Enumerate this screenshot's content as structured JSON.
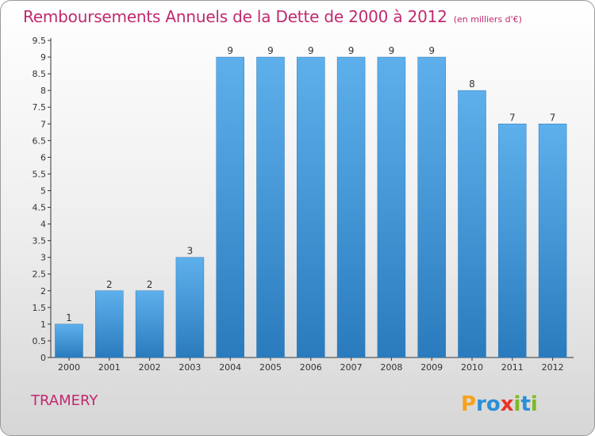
{
  "title": "Remboursements Annuels de la Dette de 2000 à 2012",
  "unit": "(en milliers d'€)",
  "town": "TRAMERY",
  "logo": {
    "text": "Proxiti",
    "letters": [
      "P",
      "r",
      "o",
      "x",
      "i",
      "t",
      "i"
    ],
    "colors": [
      "#f6a21c",
      "#2a8fd6",
      "#2a8fd6",
      "#e8342a",
      "#7cb926",
      "#2a8fd6",
      "#7cb926"
    ]
  },
  "colors": {
    "bar": "#3c95d6",
    "title": "#c0296f",
    "axis": "#333333"
  },
  "chart_data": {
    "type": "bar",
    "categories": [
      "2000",
      "2001",
      "2002",
      "2003",
      "2004",
      "2005",
      "2006",
      "2007",
      "2008",
      "2009",
      "2010",
      "2011",
      "2012"
    ],
    "values": [
      1,
      2,
      2,
      3,
      9,
      9,
      9,
      9,
      9,
      9,
      8,
      7,
      7
    ],
    "value_labels": [
      "1",
      "2",
      "2",
      "3",
      "9",
      "9",
      "9",
      "9",
      "9",
      "9",
      "8",
      "7",
      "7"
    ],
    "yticks": [
      "0",
      "0.5",
      "1",
      "1.5",
      "2",
      "2.5",
      "3",
      "3.5",
      "4",
      "4.5",
      "5",
      "5.5",
      "6",
      "6.5",
      "7",
      "7.5",
      "8",
      "8.5",
      "9",
      "9.5"
    ],
    "ylim": [
      0,
      9.5
    ],
    "title": "Remboursements Annuels de la Dette de 2000 à 2012",
    "xlabel": "",
    "ylabel": "",
    "grid": false
  }
}
